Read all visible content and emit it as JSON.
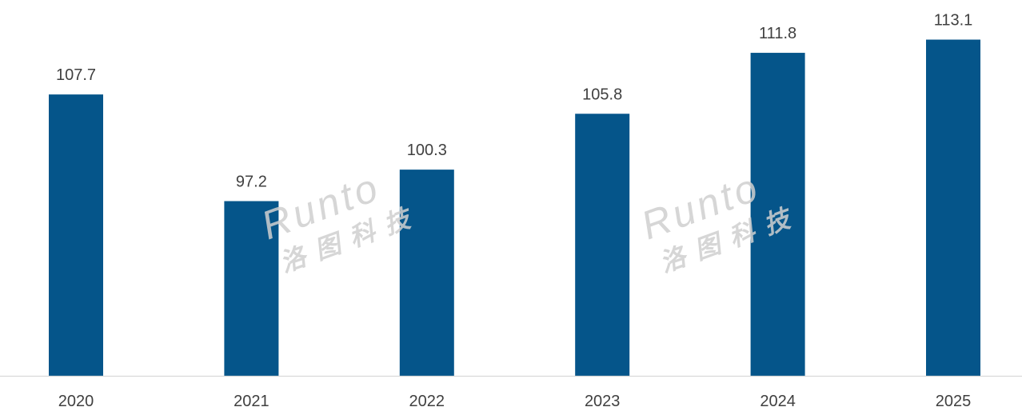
{
  "chart_data": {
    "type": "bar",
    "title": "",
    "xlabel": "",
    "ylabel": "",
    "categories": [
      "2020",
      "2021",
      "2022",
      "2023",
      "2024",
      "2025"
    ],
    "values": [
      107.7,
      97.2,
      100.3,
      105.8,
      111.8,
      113.1
    ],
    "data_labels": [
      "107.7",
      "97.2",
      "100.3",
      "105.8",
      "111.8",
      "113.1"
    ],
    "ylim": [
      80,
      117
    ],
    "y_axis_visible": false,
    "grid": false,
    "legend": "none",
    "bar_color": "#05558A",
    "label_color": "#404040",
    "axis_color": "#D9D9D9"
  },
  "watermark": {
    "text_latin": "Runto",
    "text_cjk": "洛图科技",
    "color": "#D0D0D0"
  }
}
